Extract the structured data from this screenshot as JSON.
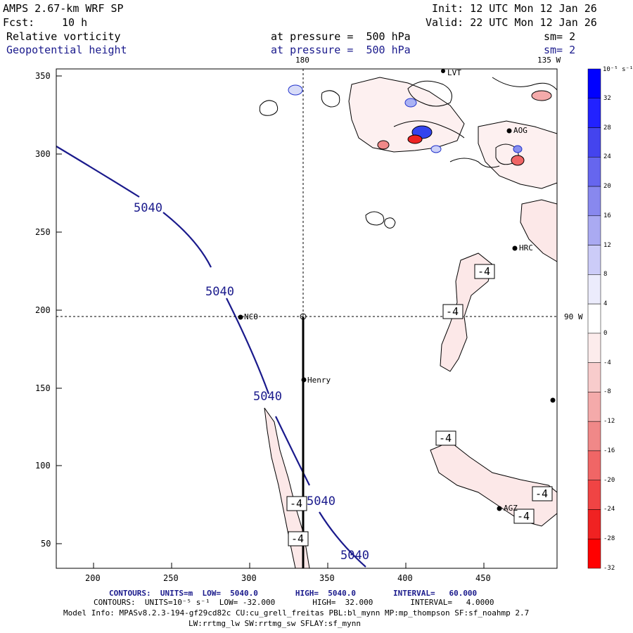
{
  "header": {
    "model": "AMPS 2.67-km WRF SP",
    "init": "Init: 12 UTC Mon 12 Jan 26",
    "fcst_label": "Fcst:",
    "fcst_value": "10 h",
    "valid": "Valid: 22 UTC Mon 12 Jan 26",
    "field1_name": "Relative vorticity",
    "field1_level": "at pressure =  500 hPa",
    "field1_sm": "sm= 2",
    "field2_name": "Geopotential height",
    "field2_level": "at pressure =  500 hPa",
    "field2_sm": "sm= 2"
  },
  "axes": {
    "x_ticks": [
      "200",
      "250",
      "300",
      "350",
      "400",
      "450"
    ],
    "y_ticks": [
      "350",
      "300",
      "250",
      "200",
      "150",
      "100",
      "50"
    ],
    "top_lon_180": "180",
    "top_lon_135w": "135 W",
    "right_lon_90w": "90 W"
  },
  "stations": [
    {
      "name": "NCO"
    },
    {
      "name": "Henry"
    },
    {
      "name": "HRC"
    },
    {
      "name": "AOG"
    },
    {
      "name": "AGZ"
    },
    {
      "name": "LVT"
    }
  ],
  "height_contour_label": "5040",
  "vorticity_contour_label": "-4",
  "colorbar": {
    "unit": "10⁻⁵ s⁻¹",
    "labels": [
      "32",
      "28",
      "24",
      "20",
      "16",
      "12",
      "8",
      "4",
      "0",
      "-4",
      "-8",
      "-12",
      "-16",
      "-20",
      "-24",
      "-28",
      "-32"
    ],
    "colors": [
      "#0000ff",
      "#2222ff",
      "#4444ee",
      "#6666ee",
      "#8888ee",
      "#aaaaf2",
      "#ccccf8",
      "#ececfc",
      "#ffffff",
      "#fcecec",
      "#f8cccc",
      "#f4aaaa",
      "#f08888",
      "#f06666",
      "#f04444",
      "#f02222",
      "#ff0000"
    ]
  },
  "footer": {
    "line1": "CONTOURS:  UNITS=m  LOW=  5040.0        HIGH=  5040.0        INTERVAL=   60.000",
    "line2": "CONTOURS:  UNITS=10⁻⁵ s⁻¹  LOW= -32.000        HIGH=  32.000        INTERVAL=   4.0000",
    "line3": "Model Info: MPASv8.2.3-194-gf29cd82c CU:cu_grell_freitas PBL:bl_mynn MP:mp_thompson SF:sf_noahmp 2.7",
    "line4": "LW:rrtmg_lw SW:rrtmg_sw SFLAY:sf_mynn"
  },
  "style": {
    "height_color": "#1a1a8c",
    "vort_pos_color": "#2233cc",
    "vort_neg_fill": "#fce8e8"
  }
}
